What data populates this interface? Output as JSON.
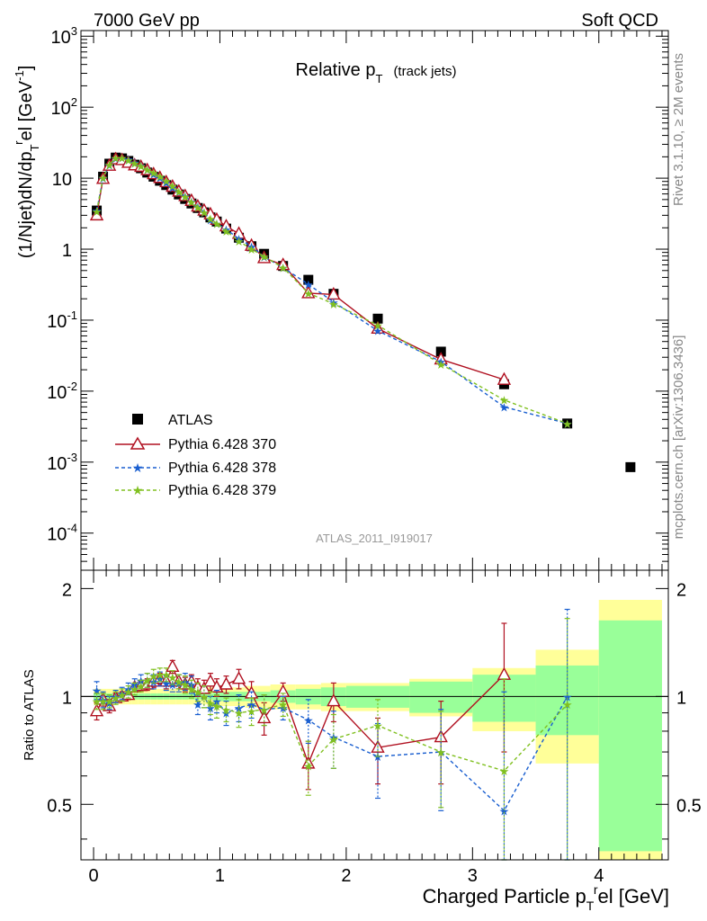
{
  "header": {
    "left": "7000 GeV pp",
    "right": "Soft QCD"
  },
  "side": {
    "rivet": "Rivet 3.1.10, ≥ 2M events",
    "mcplots": "mcplots.cern.ch [arXiv:1306.3436]"
  },
  "chart_data": {
    "type": "scatter",
    "title": "Relative p_T (track jets)",
    "title_main": "Relative p",
    "title_sub": "T",
    "title_paren": "(track jets)",
    "analysis_id": "ATLAS_2011_I919017",
    "xlabel": "Charged Particle p_T^rel [GeV]",
    "xlabel_main": "Charged Particle p",
    "xlabel_sub": "T",
    "xlabel_sup": "r",
    "xlabel_tail": "el [GeV]",
    "ylabel": "(1/Njet)dN/dp_T^rel [GeV^-1]",
    "ylabel_a": "(1/Njet)dN/dp",
    "ylabel_sub": "T",
    "ylabel_sup": "r",
    "ylabel_b": "el [GeV",
    "ylabel_exp": "-1",
    "ylabel_c": "]",
    "ratio_ylabel": "Ratio to ATLAS",
    "xlim": [
      -0.1,
      4.55
    ],
    "ylim": [
      3e-05,
      1200
    ],
    "yscale": "log",
    "ratio_ylim": [
      0.35,
      2.25
    ],
    "x_ticks": [
      "0",
      "1",
      "2",
      "3",
      "4"
    ],
    "y_ticks_main": [
      {
        "v": 1000,
        "base": "10",
        "exp": "3"
      },
      {
        "v": 100,
        "base": "10",
        "exp": "2"
      },
      {
        "v": 10,
        "base": "10",
        "exp": ""
      },
      {
        "v": 1,
        "base": "1",
        "exp": ""
      },
      {
        "v": 0.1,
        "base": "10",
        "exp": "-1"
      },
      {
        "v": 0.01,
        "base": "10",
        "exp": "-2"
      },
      {
        "v": 0.001,
        "base": "10",
        "exp": "-3"
      },
      {
        "v": 0.0001,
        "base": "10",
        "exp": "-4"
      }
    ],
    "y_ticks_ratio": [
      "0.5",
      "1",
      "2"
    ],
    "legend_position": "lower-left",
    "x": [
      0.025,
      0.075,
      0.125,
      0.175,
      0.225,
      0.275,
      0.325,
      0.375,
      0.425,
      0.475,
      0.525,
      0.575,
      0.625,
      0.675,
      0.725,
      0.775,
      0.825,
      0.875,
      0.925,
      0.975,
      1.05,
      1.15,
      1.25,
      1.35,
      1.5,
      1.7,
      1.9,
      2.25,
      2.75,
      3.25,
      3.75,
      4.25
    ],
    "series": [
      {
        "name": "ATLAS",
        "color": "#000000",
        "marker": "square",
        "values": [
          3.5,
          10.5,
          16.0,
          19.5,
          19.0,
          17.5,
          15.5,
          13.8,
          12.0,
          10.5,
          9.2,
          8.0,
          6.9,
          5.9,
          5.1,
          4.4,
          3.8,
          3.3,
          2.8,
          2.45,
          1.95,
          1.45,
          1.1,
          0.86,
          0.58,
          0.37,
          0.235,
          0.105,
          0.036,
          0.0125,
          0.0035,
          0.00085
        ]
      },
      {
        "name": "Pythia 6.428 370",
        "color": "#b01020",
        "marker": "triangle-open",
        "line": "solid",
        "values": [
          3.0,
          9.8,
          15.0,
          18.5,
          18.0,
          16.5,
          15.2,
          14.5,
          13.0,
          11.4,
          10.1,
          8.8,
          7.6,
          6.5,
          5.6,
          4.8,
          4.0,
          3.5,
          3.1,
          2.6,
          2.1,
          1.65,
          1.12,
          0.75,
          0.6,
          0.24,
          0.23,
          0.076,
          0.028,
          0.0145,
          null,
          null
        ],
        "ratio": [
          0.91,
          0.98,
          0.94,
          0.99,
          1.0,
          1.01,
          1.06,
          1.07,
          1.08,
          1.1,
          1.12,
          1.1,
          1.21,
          1.1,
          1.08,
          1.1,
          1.06,
          1.05,
          1.1,
          1.06,
          1.08,
          1.12,
          1.02,
          0.87,
          1.03,
          0.65,
          0.97,
          0.72,
          0.77,
          1.15,
          null,
          null
        ],
        "ratio_err": [
          0.05,
          0.04,
          0.04,
          0.03,
          0.03,
          0.03,
          0.03,
          0.03,
          0.04,
          0.04,
          0.04,
          0.05,
          0.05,
          0.05,
          0.05,
          0.05,
          0.06,
          0.06,
          0.06,
          0.06,
          0.06,
          0.07,
          0.08,
          0.09,
          0.06,
          0.1,
          0.12,
          0.15,
          0.2,
          0.45,
          null,
          null
        ]
      },
      {
        "name": "Pythia 6.428 378",
        "color": "#1a5fd0",
        "marker": "star",
        "line": "dashed",
        "values": [
          3.5,
          10.0,
          15.2,
          19.0,
          19.4,
          18.4,
          16.7,
          15.0,
          13.2,
          11.5,
          10.2,
          8.7,
          7.4,
          6.4,
          5.6,
          4.7,
          4.0,
          3.3,
          2.6,
          2.3,
          1.9,
          1.4,
          1.1,
          0.78,
          0.55,
          0.32,
          0.18,
          0.071,
          0.026,
          0.006,
          0.0035,
          null
        ],
        "ratio": [
          1.04,
          0.98,
          0.96,
          1.0,
          1.02,
          1.05,
          1.08,
          1.11,
          1.11,
          1.1,
          1.12,
          1.09,
          1.08,
          1.09,
          1.1,
          1.08,
          0.95,
          1.0,
          0.93,
          0.97,
          0.9,
          0.93,
          0.95,
          0.92,
          0.93,
          0.86,
          0.77,
          0.68,
          0.7,
          0.48,
          1.0,
          null
        ],
        "ratio_err": [
          0.06,
          0.05,
          0.04,
          0.04,
          0.04,
          0.04,
          0.04,
          0.04,
          0.05,
          0.05,
          0.05,
          0.05,
          0.05,
          0.06,
          0.06,
          0.06,
          0.06,
          0.07,
          0.07,
          0.07,
          0.07,
          0.08,
          0.08,
          0.09,
          0.07,
          0.12,
          0.14,
          0.16,
          0.22,
          0.55,
          0.75,
          null
        ]
      },
      {
        "name": "Pythia 6.428 379",
        "color": "#80c020",
        "marker": "star",
        "line": "dashed",
        "values": [
          3.4,
          10.2,
          15.6,
          19.3,
          19.2,
          18.0,
          16.3,
          14.8,
          13.3,
          12.0,
          10.6,
          9.2,
          7.8,
          6.5,
          5.5,
          4.6,
          3.9,
          3.3,
          2.7,
          2.3,
          1.8,
          1.3,
          1.0,
          0.79,
          0.55,
          0.24,
          0.17,
          0.085,
          0.024,
          0.0075,
          0.0035,
          null
        ],
        "ratio": [
          0.97,
          0.97,
          0.97,
          0.99,
          1.01,
          1.03,
          1.05,
          1.07,
          1.11,
          1.14,
          1.15,
          1.15,
          1.13,
          1.1,
          1.08,
          1.05,
          1.03,
          1.0,
          0.96,
          0.94,
          0.92,
          0.9,
          0.91,
          0.92,
          0.95,
          0.64,
          0.76,
          0.83,
          0.7,
          0.62,
          0.95,
          null
        ],
        "ratio_err": [
          0.05,
          0.05,
          0.04,
          0.04,
          0.04,
          0.04,
          0.04,
          0.04,
          0.05,
          0.05,
          0.05,
          0.05,
          0.05,
          0.05,
          0.06,
          0.06,
          0.06,
          0.07,
          0.07,
          0.07,
          0.07,
          0.08,
          0.08,
          0.09,
          0.07,
          0.11,
          0.13,
          0.15,
          0.21,
          0.5,
          0.7,
          null
        ]
      }
    ],
    "ref_band": {
      "edges": [
        0.0,
        0.05,
        0.1,
        0.15,
        0.2,
        0.25,
        0.3,
        0.35,
        0.4,
        0.45,
        0.5,
        0.55,
        0.6,
        0.65,
        0.7,
        0.75,
        0.8,
        0.85,
        0.9,
        0.95,
        1.0,
        1.1,
        1.2,
        1.3,
        1.4,
        1.6,
        1.8,
        2.0,
        2.5,
        3.0,
        3.5,
        4.0,
        4.5
      ],
      "stat": [
        0.02,
        0.02,
        0.02,
        0.02,
        0.02,
        0.02,
        0.02,
        0.02,
        0.02,
        0.02,
        0.02,
        0.02,
        0.02,
        0.02,
        0.02,
        0.02,
        0.02,
        0.02,
        0.02,
        0.03,
        0.03,
        0.03,
        0.03,
        0.03,
        0.04,
        0.05,
        0.06,
        0.07,
        0.1,
        0.15,
        0.22,
        0.63
      ],
      "total": [
        0.05,
        0.05,
        0.05,
        0.05,
        0.05,
        0.05,
        0.05,
        0.05,
        0.05,
        0.05,
        0.05,
        0.05,
        0.05,
        0.05,
        0.05,
        0.05,
        0.05,
        0.05,
        0.06,
        0.06,
        0.06,
        0.06,
        0.07,
        0.07,
        0.08,
        0.08,
        0.09,
        0.09,
        0.12,
        0.2,
        0.35,
        0.86
      ]
    }
  }
}
